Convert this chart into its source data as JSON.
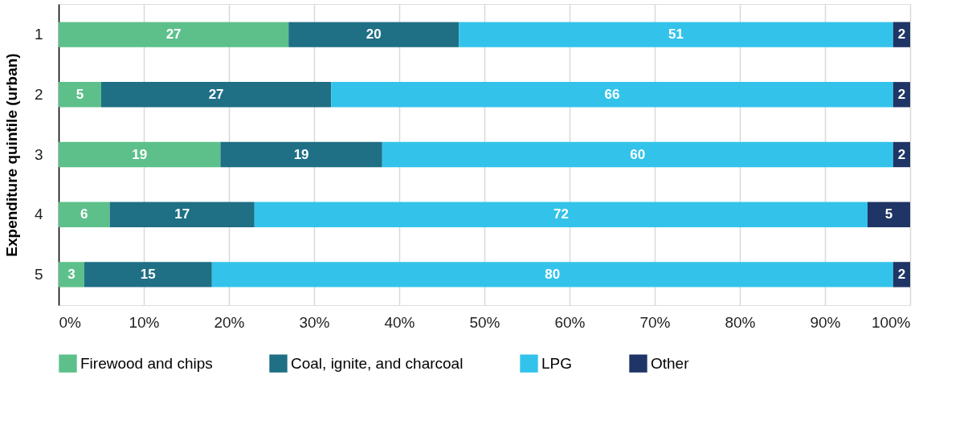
{
  "chart_data": {
    "type": "bar",
    "orientation": "horizontal",
    "stacked": true,
    "categories": [
      "1",
      "2",
      "3",
      "4",
      "5"
    ],
    "series": [
      {
        "name": "Firewood and chips",
        "color": "#5dc08a",
        "values": [
          27,
          5,
          19,
          6,
          3
        ]
      },
      {
        "name": "Coal, ignite, and charcoal",
        "color": "#1f6f85",
        "values": [
          20,
          27,
          19,
          17,
          15
        ]
      },
      {
        "name": "LPG",
        "color": "#33c3ea",
        "values": [
          51,
          66,
          60,
          72,
          80
        ]
      },
      {
        "name": "Other",
        "color": "#1f3566",
        "values": [
          2,
          2,
          2,
          5,
          2
        ]
      }
    ],
    "xlim": [
      0,
      100
    ],
    "xticks": [
      {
        "value": 0,
        "label": "0%"
      },
      {
        "value": 10,
        "label": "10%"
      },
      {
        "value": 20,
        "label": "20%"
      },
      {
        "value": 30,
        "label": "30%"
      },
      {
        "value": 40,
        "label": "40%"
      },
      {
        "value": 50,
        "label": "50%"
      },
      {
        "value": 60,
        "label": "60%"
      },
      {
        "value": 70,
        "label": "70%"
      },
      {
        "value": 80,
        "label": "80%"
      },
      {
        "value": 90,
        "label": "90%"
      },
      {
        "value": 100,
        "label": "100%"
      }
    ],
    "ylabel": "Expenditure quintile (urban)",
    "grid": "x",
    "legend": "bottom",
    "data_labels": true
  }
}
